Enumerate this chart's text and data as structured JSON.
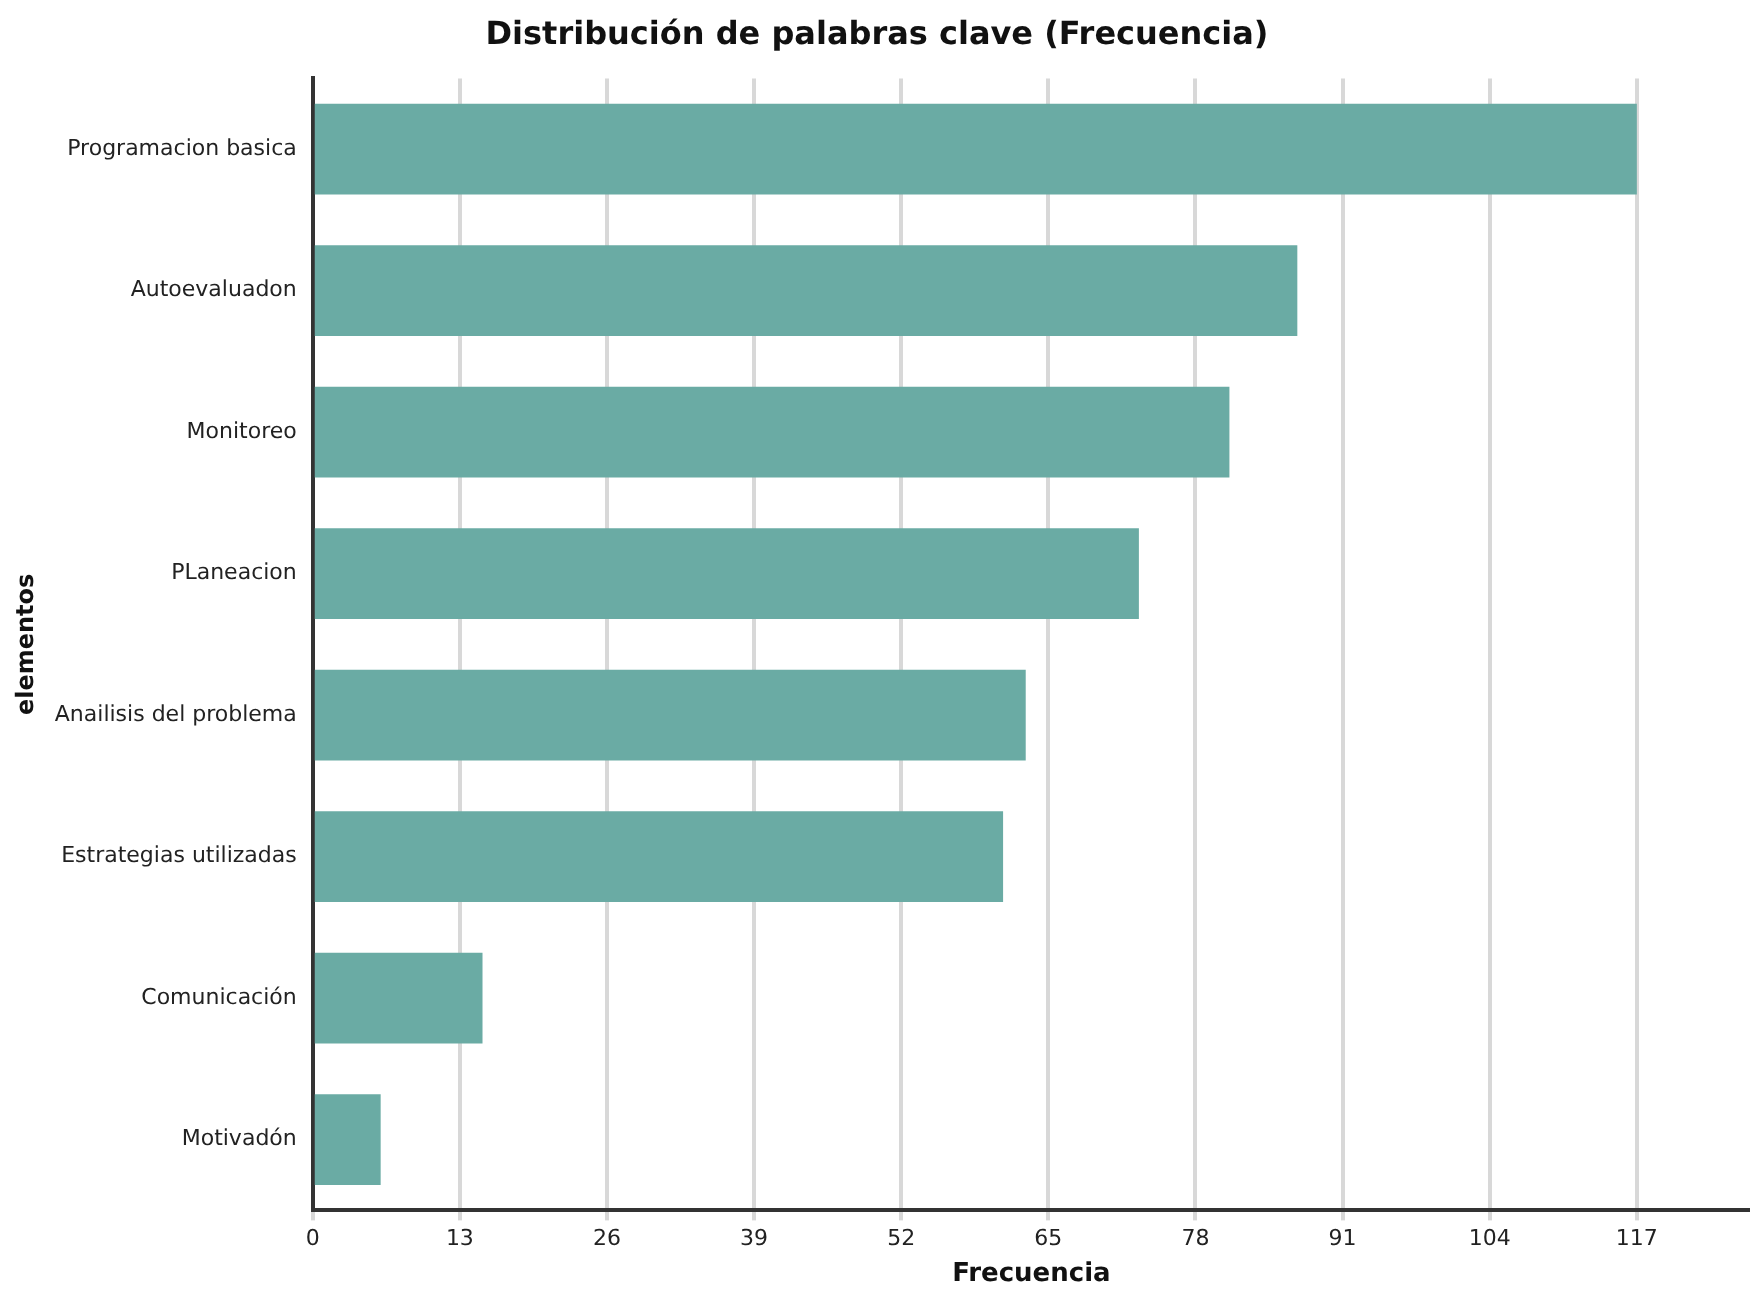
{
  "chart_data": {
    "type": "bar",
    "orientation": "horizontal",
    "title": "Distribución de palabras clave (Frecuencia)",
    "xlabel": "Frecuencia",
    "ylabel": "elementos",
    "categories": [
      "Programacion basica",
      "Autoevaluadon",
      "Monitoreo",
      "PLaneacion",
      "Anailisis del problema",
      "Estrategias utilizadas",
      "Comunicación",
      "Motivadón"
    ],
    "values": [
      117,
      87,
      81,
      73,
      63,
      61,
      15,
      6
    ],
    "color": "#6aaba4",
    "xlim": [
      0,
      127
    ],
    "xticks": [
      0,
      13,
      26,
      39,
      52,
      65,
      78,
      91,
      104,
      117
    ],
    "grid": "x"
  }
}
